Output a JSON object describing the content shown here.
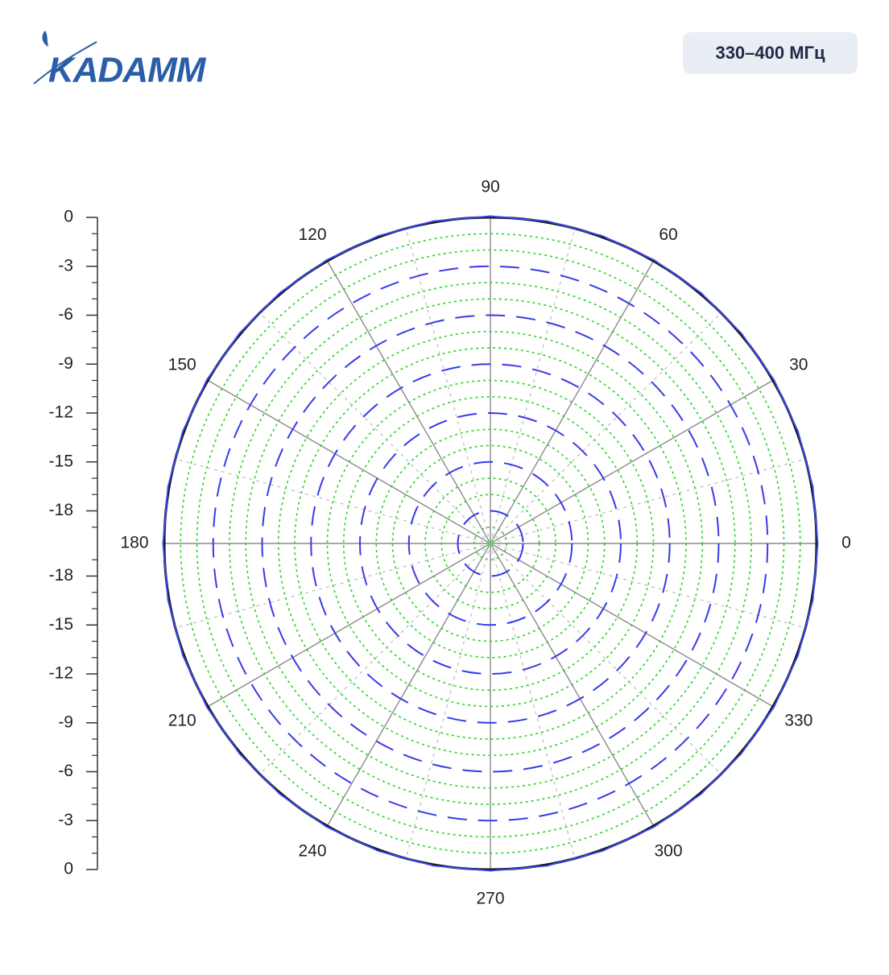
{
  "header": {
    "logo": "KADAMM",
    "badge": "330–400 МГц"
  },
  "chart_data": {
    "type": "polar",
    "x": [
      0,
      10,
      20,
      30,
      40,
      50,
      60,
      70,
      80,
      90,
      100,
      110,
      120,
      130,
      140,
      150,
      160,
      170,
      180,
      190,
      200,
      210,
      220,
      230,
      240,
      250,
      260,
      270,
      280,
      290,
      300,
      310,
      320,
      330,
      340,
      350
    ],
    "series": [
      {
        "color": "#3b46e6",
        "values": [
          0,
          0,
          0,
          0,
          0,
          0,
          0,
          0,
          0,
          0,
          0,
          0,
          0,
          0,
          0,
          0,
          0,
          0,
          0,
          0,
          0,
          0,
          0,
          0,
          0,
          0,
          0,
          0,
          0,
          0,
          0,
          0,
          0,
          0,
          0,
          0
        ]
      }
    ],
    "xticks": [
      0,
      30,
      60,
      90,
      120,
      150,
      180,
      210,
      240,
      270,
      300,
      330
    ],
    "xminorticks": [
      15,
      45,
      75,
      105,
      135,
      165,
      195,
      225,
      255,
      285,
      315,
      345
    ],
    "rlim": [
      -20,
      0
    ],
    "rticks": [
      -18,
      -15,
      -12,
      -9,
      -6,
      -3,
      0
    ],
    "rminorticks": [
      -19,
      -17,
      -16,
      -14,
      -13,
      -11,
      -10,
      -8,
      -7,
      -5,
      -4,
      -2,
      -1
    ],
    "major_ring_color": "#3a3ae8",
    "minor_ring_color": "#22d622",
    "grid": true
  }
}
